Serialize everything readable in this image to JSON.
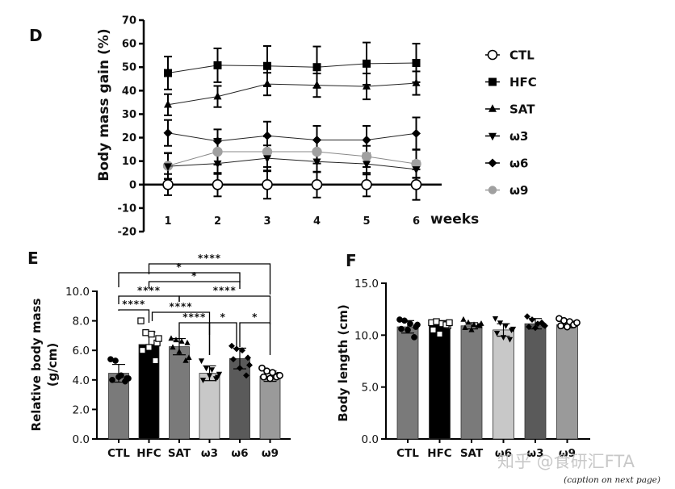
{
  "watermark": "知乎 @食研汇FTA",
  "caption": "(caption on next page)",
  "chart_data": [
    {
      "panel": "D",
      "type": "line",
      "title": "",
      "xlabel": "weeks",
      "ylabel": "Body mass gain (%)",
      "x": [
        1,
        2,
        3,
        4,
        5,
        6
      ],
      "xticks": [
        "1",
        "2",
        "3",
        "4",
        "5",
        "6"
      ],
      "ylim": [
        -20,
        70
      ],
      "yticks": [
        "70",
        "60",
        "50",
        "40",
        "30",
        "20",
        "10",
        "0",
        "-10",
        "-20"
      ],
      "ytick_values": [
        70,
        60,
        50,
        40,
        30,
        20,
        10,
        0,
        -10,
        -20
      ],
      "grid": false,
      "legend_position": "right",
      "series": [
        {
          "name": "CTL",
          "marker": "open-circle",
          "color": "#000000",
          "values": [
            0,
            0,
            0,
            0,
            0,
            0
          ],
          "err": [
            4.5,
            5,
            6,
            5.5,
            5,
            6.5
          ]
        },
        {
          "name": "HFC",
          "marker": "square",
          "color": "#000000",
          "values": [
            47.5,
            50.8,
            50.5,
            50,
            51.5,
            51.8
          ],
          "err": [
            7,
            7.2,
            8.5,
            8.8,
            9,
            8.2
          ]
        },
        {
          "name": "SAT",
          "marker": "triangle-up",
          "color": "#000000",
          "values": [
            34,
            37.5,
            42.8,
            42.3,
            41.8,
            43.2
          ],
          "err": [
            4.5,
            4.5,
            4.8,
            5,
            5.5,
            5
          ]
        },
        {
          "name": "ω3",
          "marker": "triangle-down",
          "color": "#000000",
          "values": [
            7.8,
            9,
            11.2,
            9.8,
            8.8,
            6.5
          ],
          "err": [
            5.5,
            4.5,
            5.5,
            4.5,
            4.5,
            3.5
          ]
        },
        {
          "name": "ω6",
          "marker": "diamond",
          "color": "#000000",
          "values": [
            22,
            18.5,
            20.8,
            19,
            19,
            21.8
          ],
          "err": [
            5.5,
            5,
            6,
            6,
            6,
            6.8
          ]
        },
        {
          "name": "ω9",
          "marker": "filled-circle",
          "color": "#a0a0a0",
          "values": [
            8,
            14,
            14,
            14,
            12,
            8.8
          ],
          "err": [
            5.5,
            5.5,
            6.5,
            5,
            4.5,
            6
          ]
        }
      ]
    },
    {
      "panel": "E",
      "type": "bar",
      "title": "",
      "xlabel": "",
      "ylabel": "Relative body mass (g/cm)",
      "ylabel_lines": [
        "Relative body mass",
        "(g/cm)"
      ],
      "categories": [
        "CTL",
        "HFC",
        "SAT",
        "ω3",
        "ω6",
        "ω9"
      ],
      "values": [
        4.45,
        6.4,
        6.25,
        4.45,
        5.45,
        4.25
      ],
      "err": [
        0.6,
        0.85,
        0.55,
        0.5,
        0.7,
        0.35
      ],
      "bar_colors": [
        "#7a7a7a",
        "#000000",
        "#7a7a7a",
        "#c8c8c8",
        "#5a5a5a",
        "#9a9a9a"
      ],
      "point_markers": [
        "filled-circle",
        "open-square",
        "triangle-up",
        "triangle-down",
        "diamond",
        "open-circle"
      ],
      "points": [
        [
          5.4,
          5.3,
          4.3,
          4.1,
          4.0,
          4.2,
          3.9,
          4.1
        ],
        [
          8.0,
          7.2,
          7.1,
          6.5,
          6.0,
          6.2,
          5.3,
          6.8
        ],
        [
          6.8,
          6.7,
          6.6,
          6.5,
          6.2,
          5.9,
          5.3,
          5.5
        ],
        [
          5.3,
          4.8,
          4.7,
          4.2,
          4.0,
          4.3,
          4.1,
          4.4
        ],
        [
          6.3,
          6.1,
          6.0,
          5.5,
          5.4,
          4.8,
          4.3,
          5.0
        ],
        [
          4.8,
          4.6,
          4.5,
          4.3,
          4.2,
          4.1,
          4.2,
          4.3
        ]
      ],
      "ylim": [
        0,
        10
      ],
      "yticks": [
        "0.0",
        "2.0",
        "4.0",
        "6.0",
        "8.0",
        "10.0"
      ],
      "ytick_values": [
        0,
        2,
        4,
        6,
        8,
        10
      ],
      "significance": [
        {
          "from": "CTL",
          "to": "HFC",
          "label": "****"
        },
        {
          "from": "HFC",
          "to": "ω3",
          "label": "****"
        },
        {
          "from": "SAT",
          "to": "ω3",
          "label": "****"
        },
        {
          "from": "ω3",
          "to": "ω6",
          "label": "*"
        },
        {
          "from": "ω6",
          "to": "ω9",
          "label": "*"
        },
        {
          "from": "CTL",
          "to": "SAT",
          "label": "****"
        },
        {
          "from": "SAT",
          "to": "ω9",
          "label": "****"
        },
        {
          "from": "HFC",
          "to": "ω6",
          "label": "*"
        },
        {
          "from": "CTL",
          "to": "ω6",
          "label": "*"
        },
        {
          "from": "HFC",
          "to": "ω9",
          "label": "****"
        }
      ]
    },
    {
      "panel": "F",
      "type": "bar",
      "title": "",
      "xlabel": "",
      "ylabel": "Body length (cm)",
      "categories": [
        "CTL",
        "HFC",
        "SAT",
        "ω6",
        "ω3",
        "ω9"
      ],
      "values": [
        10.8,
        11.0,
        10.9,
        10.5,
        11.1,
        11.0
      ],
      "err": [
        0.6,
        0.4,
        0.3,
        0.6,
        0.5,
        0.3
      ],
      "bar_colors": [
        "#7a7a7a",
        "#000000",
        "#7a7a7a",
        "#c8c8c8",
        "#5a5a5a",
        "#9a9a9a"
      ],
      "point_markers": [
        "filled-circle",
        "open-square",
        "triangle-up",
        "triangle-down",
        "diamond",
        "open-circle"
      ],
      "points": [
        [
          11.5,
          11.4,
          11.1,
          10.8,
          10.6,
          10.5,
          9.8,
          11.0
        ],
        [
          11.2,
          11.3,
          11.1,
          10.9,
          10.5,
          10.1,
          11.0,
          11.2
        ],
        [
          11.5,
          11.2,
          11.0,
          10.9,
          10.7,
          10.5,
          10.9,
          11.1
        ],
        [
          11.6,
          11.2,
          10.9,
          10.5,
          10.2,
          9.8,
          9.6,
          10.6
        ],
        [
          11.8,
          11.5,
          11.1,
          11.0,
          10.8,
          10.7,
          11.2,
          10.9
        ],
        [
          11.6,
          11.4,
          11.3,
          11.1,
          10.9,
          10.8,
          11.0,
          11.2
        ]
      ],
      "ylim": [
        0,
        15
      ],
      "yticks": [
        "0.0",
        "5.0",
        "10.0",
        "15.0"
      ],
      "ytick_values": [
        0,
        5,
        10,
        15
      ]
    }
  ]
}
